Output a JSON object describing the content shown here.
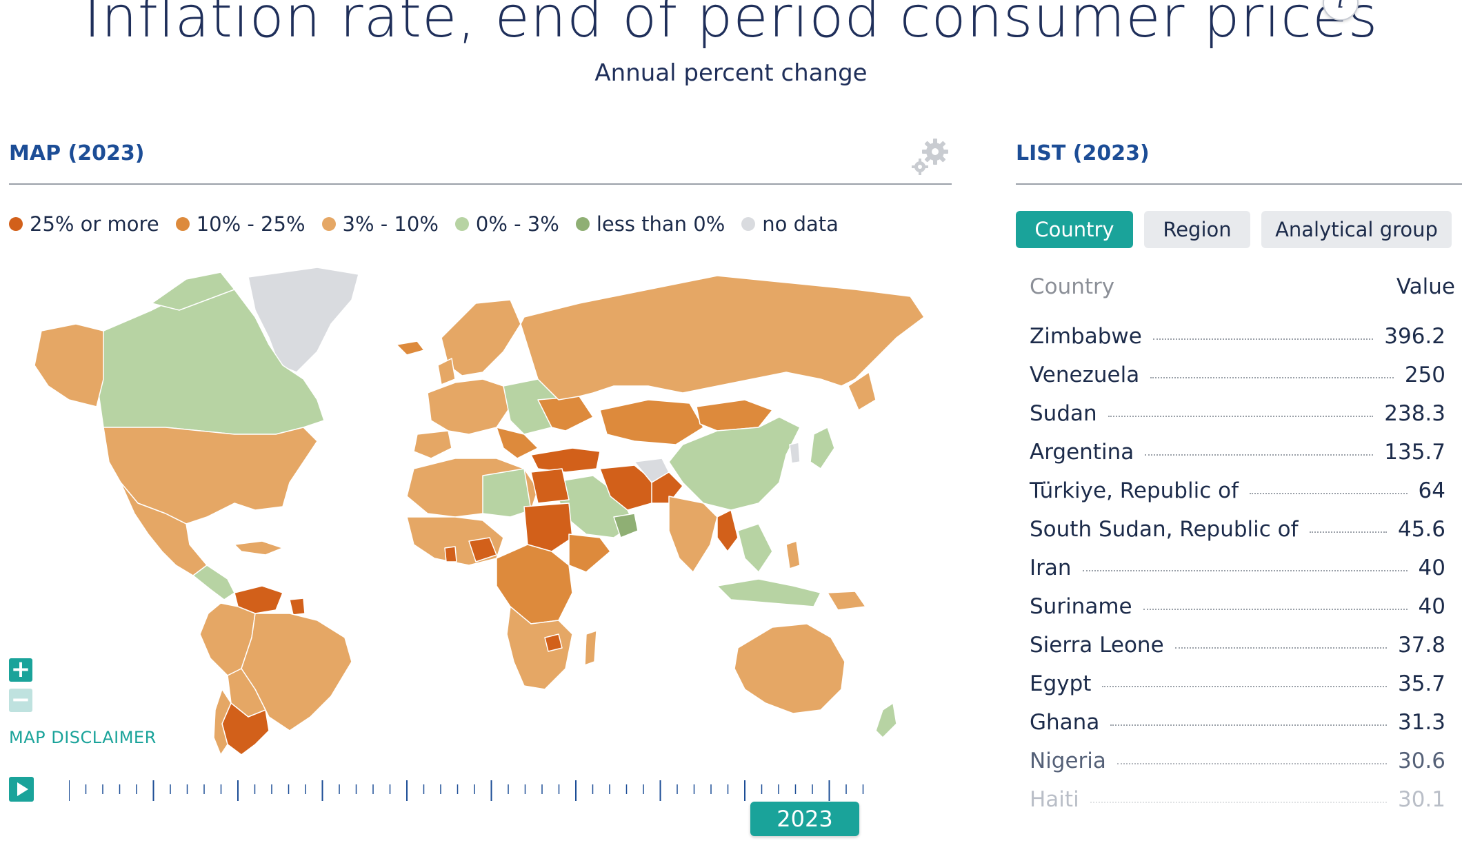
{
  "header": {
    "title": "Inflation rate, end of period consumer prices",
    "subtitle": "Annual percent change",
    "info_icon": "i"
  },
  "map_panel": {
    "title": "MAP (2023)",
    "settings_icon": "gear-icon",
    "legend": [
      {
        "label": "25% or more",
        "color": "#d2601a"
      },
      {
        "label": "10% - 25%",
        "color": "#dd8a3c"
      },
      {
        "label": "3% - 10%",
        "color": "#e5a765"
      },
      {
        "label": "0% - 3%",
        "color": "#b7d3a3"
      },
      {
        "label": "less than 0%",
        "color": "#8faf74"
      },
      {
        "label": "no data",
        "color": "#d9dbdf"
      }
    ],
    "zoom_in_label": "+",
    "zoom_out_label": "−",
    "disclaimer": "MAP DISCLAIMER",
    "current_year": "2023"
  },
  "list_panel": {
    "title": "LIST (2023)",
    "tabs": [
      {
        "label": "Country",
        "active": true
      },
      {
        "label": "Region",
        "active": false
      },
      {
        "label": "Analytical group",
        "active": false
      }
    ],
    "col_country": "Country",
    "col_value": "Value",
    "rows": [
      {
        "country": "Zimbabwe",
        "value": "396.2"
      },
      {
        "country": "Venezuela",
        "value": "250"
      },
      {
        "country": "Sudan",
        "value": "238.3"
      },
      {
        "country": "Argentina",
        "value": "135.7"
      },
      {
        "country": "Türkiye, Republic of",
        "value": "64"
      },
      {
        "country": "South Sudan, Republic of",
        "value": "45.6"
      },
      {
        "country": "Iran",
        "value": "40"
      },
      {
        "country": "Suriname",
        "value": "40"
      },
      {
        "country": "Sierra Leone",
        "value": "37.8"
      },
      {
        "country": "Egypt",
        "value": "35.7"
      },
      {
        "country": "Ghana",
        "value": "31.3"
      },
      {
        "country": "Nigeria",
        "value": "30.6"
      },
      {
        "country": "Haiti",
        "value": "30.1"
      }
    ]
  }
}
